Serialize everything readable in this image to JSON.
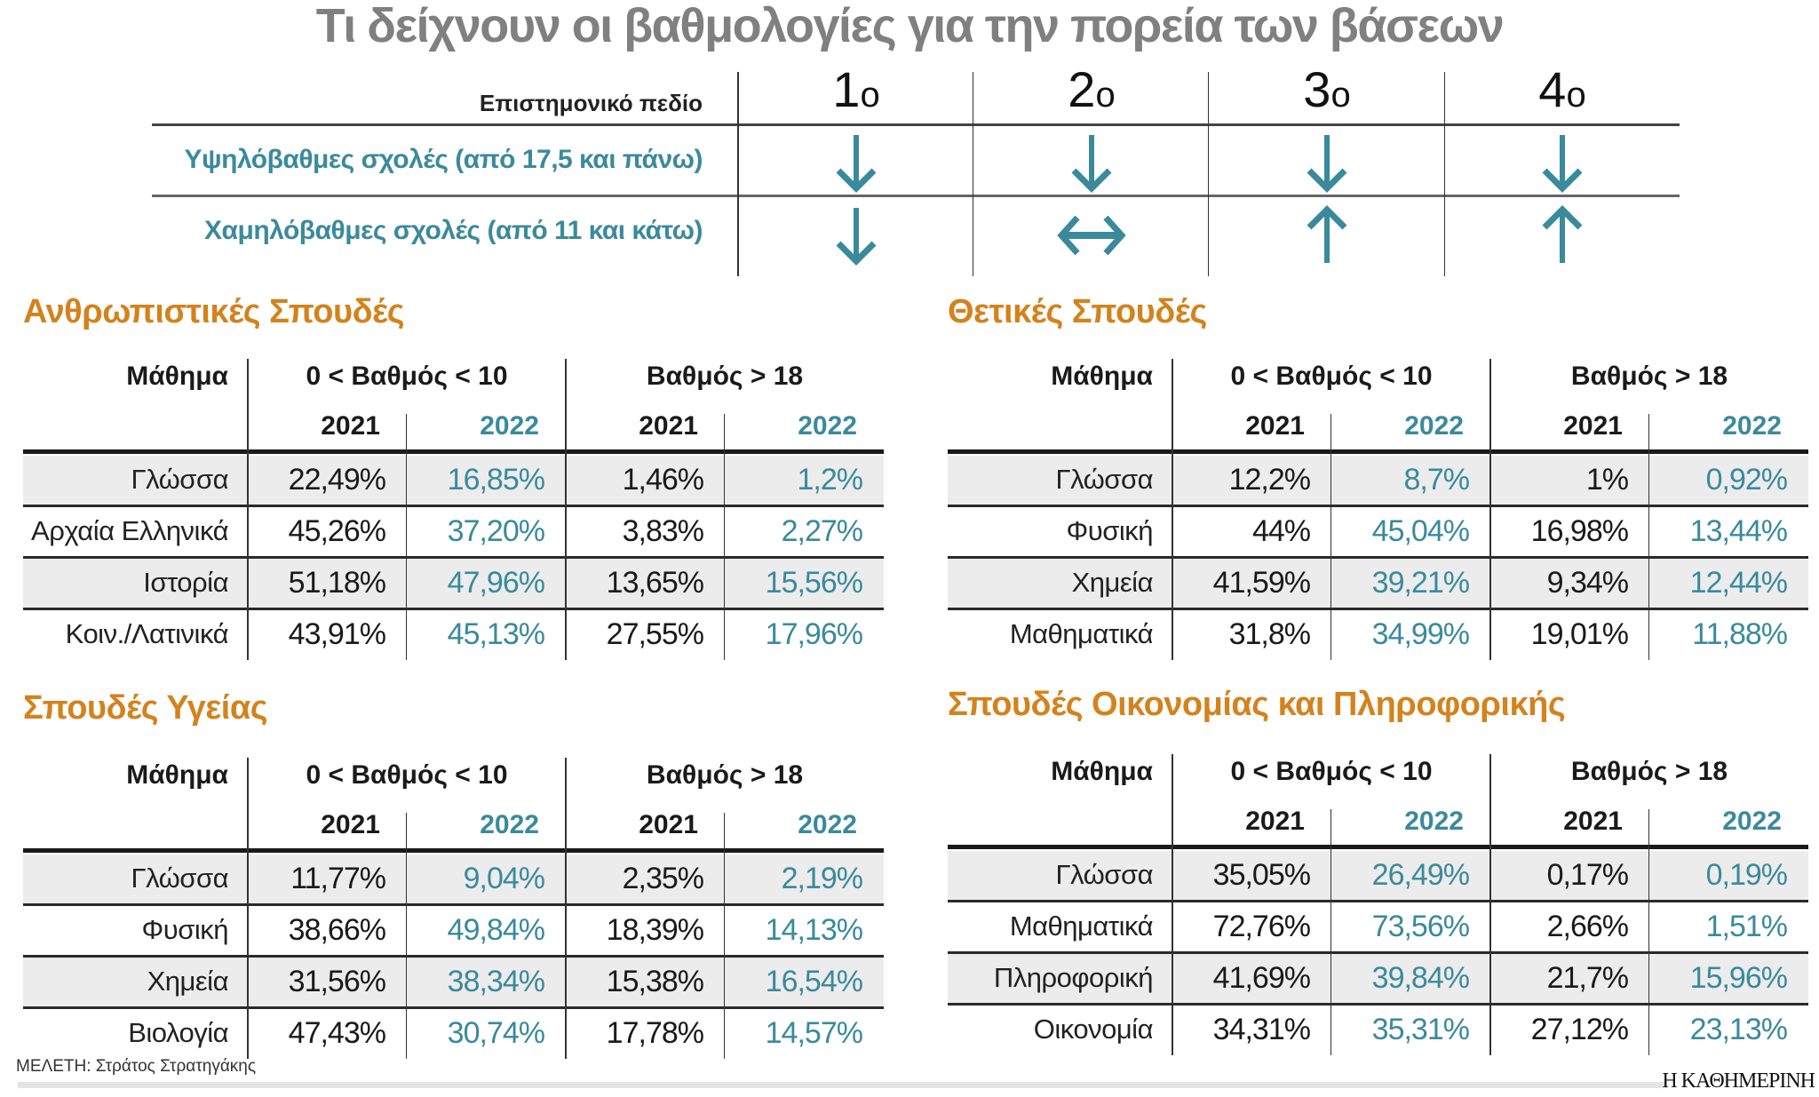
{
  "title": "Τι δείχνουν οι βαθμολογίες για την πορεία των βάσεων",
  "overview": {
    "field_header": "Επιστημονικό πεδίο",
    "columns": [
      {
        "num": "1",
        "suffix": "ο"
      },
      {
        "num": "2",
        "suffix": "ο"
      },
      {
        "num": "3",
        "suffix": "ο"
      },
      {
        "num": "4",
        "suffix": "ο"
      }
    ],
    "rows": [
      {
        "label": "Υψηλόβαθμες σχολές (από 17,5 και πάνω)",
        "arrows": [
          "down",
          "down",
          "down",
          "down"
        ]
      },
      {
        "label": "Χαμηλόβαθμες σχολές (από 11 και κάτω)",
        "arrows": [
          "down",
          "left-right",
          "up",
          "up"
        ]
      }
    ]
  },
  "colors": {
    "accent_orange": "#d4821c",
    "teal": "#3a8a9c",
    "title_gray": "#808080",
    "row_shade": "#ececec"
  },
  "sections": [
    {
      "title": "Ανθρωπιστικές Σπουδές",
      "header": {
        "subject": "Μάθημα",
        "group1": "0 < Βαθμός < 10",
        "group2": "Βαθμός > 18",
        "years": [
          "2021",
          "2022",
          "2021",
          "2022"
        ]
      },
      "rows": [
        {
          "subject": "Γλώσσα",
          "values": [
            "22,49%",
            "16,85%",
            "1,46%",
            "1,2%"
          ]
        },
        {
          "subject": "Αρχαία Ελληνικά",
          "values": [
            "45,26%",
            "37,20%",
            "3,83%",
            "2,27%"
          ]
        },
        {
          "subject": "Ιστορία",
          "values": [
            "51,18%",
            "47,96%",
            "13,65%",
            "15,56%"
          ]
        },
        {
          "subject": "Κοιν./Λατινικά",
          "values": [
            "43,91%",
            "45,13%",
            "27,55%",
            "17,96%"
          ]
        }
      ]
    },
    {
      "title": "Θετικές Σπουδές",
      "header": {
        "subject": "Μάθημα",
        "group1": "0 < Βαθμός < 10",
        "group2": "Βαθμός > 18",
        "years": [
          "2021",
          "2022",
          "2021",
          "2022"
        ]
      },
      "rows": [
        {
          "subject": "Γλώσσα",
          "values": [
            "12,2%",
            "8,7%",
            "1%",
            "0,92%"
          ]
        },
        {
          "subject": "Φυσική",
          "values": [
            "44%",
            "45,04%",
            "16,98%",
            "13,44%"
          ]
        },
        {
          "subject": "Χημεία",
          "values": [
            "41,59%",
            "39,21%",
            "9,34%",
            "12,44%"
          ]
        },
        {
          "subject": "Μαθηματικά",
          "values": [
            "31,8%",
            "34,99%",
            "19,01%",
            "11,88%"
          ]
        }
      ]
    },
    {
      "title": "Σπουδές Υγείας",
      "header": {
        "subject": "Μάθημα",
        "group1": "0 < Βαθμός < 10",
        "group2": "Βαθμός > 18",
        "years": [
          "2021",
          "2022",
          "2021",
          "2022"
        ]
      },
      "rows": [
        {
          "subject": "Γλώσσα",
          "values": [
            "11,77%",
            "9,04%",
            "2,35%",
            "2,19%"
          ]
        },
        {
          "subject": "Φυσική",
          "values": [
            "38,66%",
            "49,84%",
            "18,39%",
            "14,13%"
          ]
        },
        {
          "subject": "Χημεία",
          "values": [
            "31,56%",
            "38,34%",
            "15,38%",
            "16,54%"
          ]
        },
        {
          "subject": "Βιολογία",
          "values": [
            "47,43%",
            "30,74%",
            "17,78%",
            "14,57%"
          ]
        }
      ]
    },
    {
      "title": "Σπουδές Οικονομίας και Πληροφορικής",
      "header": {
        "subject": "Μάθημα",
        "group1": "0 < Βαθμός < 10",
        "group2": "Βαθμός > 18",
        "years": [
          "2021",
          "2022",
          "2021",
          "2022"
        ]
      },
      "rows": [
        {
          "subject": "Γλώσσα",
          "values": [
            "35,05%",
            "26,49%",
            "0,17%",
            "0,19%"
          ]
        },
        {
          "subject": "Μαθηματικά",
          "values": [
            "72,76%",
            "73,56%",
            "2,66%",
            "1,51%"
          ]
        },
        {
          "subject": "Πληροφορική",
          "values": [
            "41,69%",
            "39,84%",
            "21,7%",
            "15,96%"
          ]
        },
        {
          "subject": "Οικονομία",
          "values": [
            "34,31%",
            "35,31%",
            "27,12%",
            "23,13%"
          ]
        }
      ]
    }
  ],
  "footer": {
    "credit": "ΜΕΛΕΤΗ: Στράτος Στρατηγάκης",
    "brand": "Η ΚΑΘΗΜΕΡΙΝΗ"
  }
}
